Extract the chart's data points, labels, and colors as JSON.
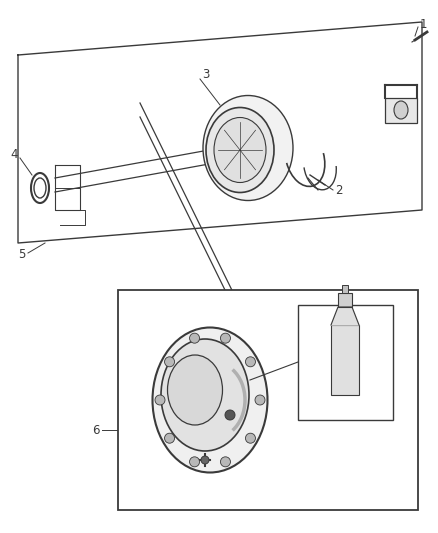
{
  "bg_color": "#ffffff",
  "line_color": "#3a3a3a",
  "label_color": "#3a3a3a",
  "fig_width": 4.39,
  "fig_height": 5.33,
  "dpi": 100
}
